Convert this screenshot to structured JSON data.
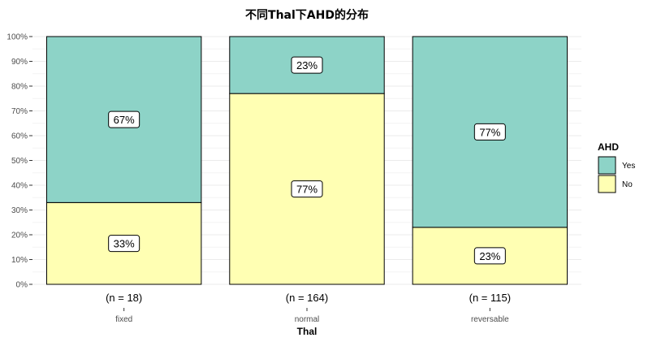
{
  "chart_data": {
    "type": "bar",
    "stacked": true,
    "percent": true,
    "title": "不同Thal下AHD的分布",
    "xlabel": "Thal",
    "ylabel": "",
    "ylim": [
      0,
      100
    ],
    "yticks": [
      "0%",
      "10%",
      "20%",
      "30%",
      "40%",
      "50%",
      "60%",
      "70%",
      "80%",
      "90%",
      "100%"
    ],
    "categories": [
      "fixed",
      "normal",
      "reversable"
    ],
    "counts": [
      "(n = 18)",
      "(n = 164)",
      "(n = 115)"
    ],
    "series": [
      {
        "name": "Yes",
        "color": "#8dd3c7",
        "values": [
          67,
          23,
          77
        ],
        "labels": [
          "67%",
          "23%",
          "77%"
        ]
      },
      {
        "name": "No",
        "color": "#ffffb3",
        "values": [
          33,
          77,
          23
        ],
        "labels": [
          "33%",
          "77%",
          "23%"
        ]
      }
    ],
    "legend": {
      "title": "AHD",
      "position": "right",
      "entries": [
        "Yes",
        "No"
      ]
    },
    "grid": true
  }
}
